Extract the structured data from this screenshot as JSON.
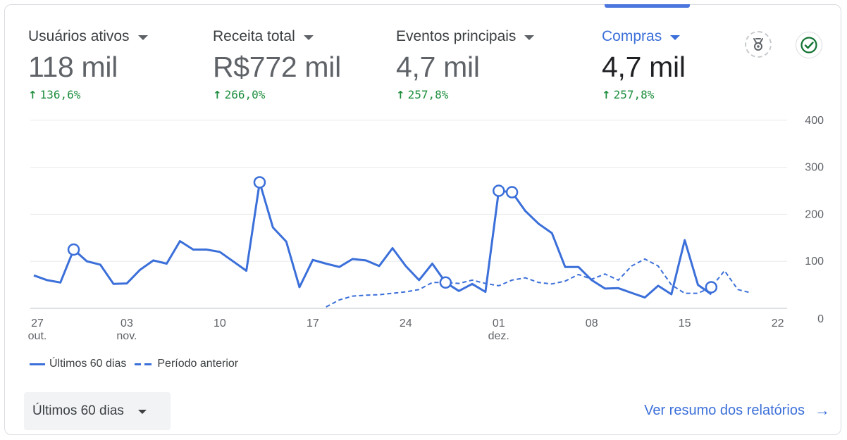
{
  "metrics": [
    {
      "label": "Usuários ativos",
      "value": "118 mil",
      "change": "136,6%",
      "active": false
    },
    {
      "label": "Receita total",
      "value": "R$772 mil",
      "change": "266,0%",
      "active": false
    },
    {
      "label": "Eventos principais",
      "value": "4,7 mil",
      "change": "257,8%",
      "active": false
    },
    {
      "label": "Compras",
      "value": "4,7 mil",
      "change": "257,8%",
      "active": true
    }
  ],
  "icons": {
    "insights": "insights-badge-icon",
    "check": "check-circle-icon"
  },
  "colors": {
    "accent": "#3b6fd9",
    "positive": "#1e8e3e",
    "grid": "#e8eaed",
    "axis_text": "#5f6368"
  },
  "chart_data": {
    "type": "line",
    "title": "",
    "xlabel": "",
    "ylabel": "",
    "ylim": [
      0,
      400
    ],
    "y_ticks": [
      0,
      100,
      200,
      300,
      400
    ],
    "grid": true,
    "legend_position": "bottom-left",
    "x_ticks": [
      {
        "day": 0,
        "label": "27",
        "sub": "out."
      },
      {
        "day": 7,
        "label": "03",
        "sub": "nov."
      },
      {
        "day": 14,
        "label": "10",
        "sub": ""
      },
      {
        "day": 21,
        "label": "17",
        "sub": ""
      },
      {
        "day": 28,
        "label": "24",
        "sub": ""
      },
      {
        "day": 35,
        "label": "01",
        "sub": "dez."
      },
      {
        "day": 42,
        "label": "08",
        "sub": ""
      },
      {
        "day": 49,
        "label": "15",
        "sub": ""
      },
      {
        "day": 56,
        "label": "22",
        "sub": ""
      }
    ],
    "series": [
      {
        "name": "Últimos 60 dias",
        "style": "solid",
        "values": [
          70,
          60,
          55,
          125,
          100,
          93,
          52,
          53,
          82,
          102,
          95,
          143,
          125,
          125,
          120,
          100,
          80,
          268,
          172,
          142,
          45,
          103,
          95,
          88,
          105,
          102,
          90,
          128,
          90,
          60,
          95,
          55,
          37,
          52,
          35,
          250,
          247,
          207,
          180,
          160,
          88,
          88,
          60,
          42,
          43,
          33,
          23,
          48,
          30,
          145,
          50,
          30
        ],
        "markers": [
          3,
          17,
          35,
          36
        ]
      },
      {
        "name": "Período anterior",
        "style": "dashed",
        "values": [
          null,
          null,
          null,
          null,
          null,
          null,
          null,
          null,
          null,
          null,
          null,
          null,
          null,
          null,
          null,
          null,
          null,
          null,
          null,
          null,
          null,
          null,
          3,
          18,
          26,
          28,
          29,
          32,
          35,
          40,
          55,
          55,
          53,
          60,
          53,
          48,
          60,
          65,
          55,
          52,
          58,
          72,
          62,
          73,
          60,
          90,
          105,
          90,
          50,
          32,
          32,
          45,
          80,
          40,
          33
        ],
        "markers": [
          31,
          51
        ]
      }
    ]
  },
  "legend": {
    "current": "Últimos 60 dias",
    "previous": "Período anterior"
  },
  "date_range": {
    "label": "Últimos 60 dias"
  },
  "report_link": {
    "label": "Ver resumo dos relatórios"
  }
}
